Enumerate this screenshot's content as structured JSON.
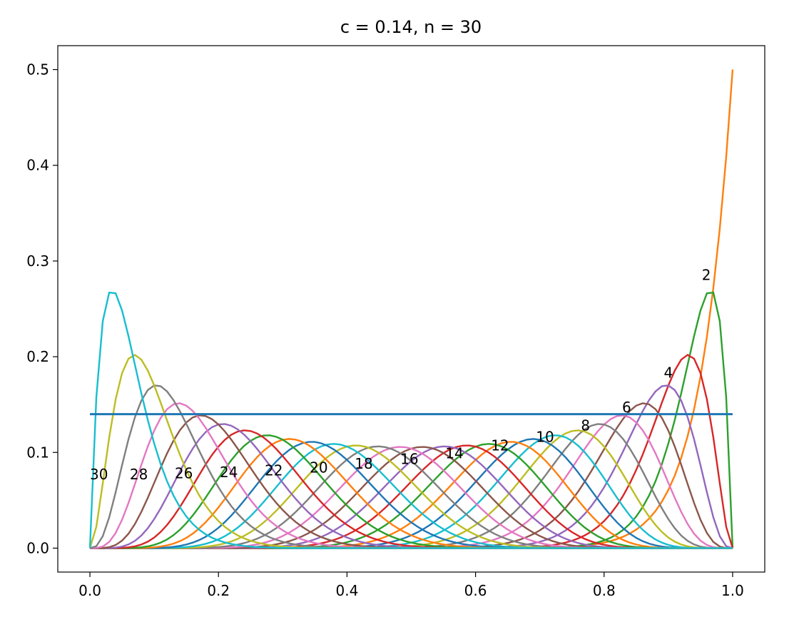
{
  "chart_data": {
    "type": "line",
    "title": "c = 0.14, n = 30",
    "xlabel": "",
    "ylabel": "",
    "xlim": [
      -0.05,
      1.05
    ],
    "ylim": [
      -0.025,
      0.525
    ],
    "xticks": [
      0.0,
      0.2,
      0.4,
      0.6,
      0.8,
      1.0
    ],
    "xtick_labels": [
      "0.0",
      "0.2",
      "0.4",
      "0.6",
      "0.8",
      "1.0"
    ],
    "yticks": [
      0.0,
      0.1,
      0.2,
      0.3,
      0.4,
      0.5
    ],
    "ytick_labels": [
      "0.0",
      "0.1",
      "0.2",
      "0.3",
      "0.4",
      "0.5"
    ],
    "grid": false,
    "legend": "none",
    "parameters": {
      "c": 0.14,
      "n": 30
    },
    "series_colors": [
      "#1f77b4",
      "#ff7f0e",
      "#2ca02c",
      "#d62728",
      "#9467bd",
      "#8c564b",
      "#e377c2",
      "#7f7f7f",
      "#bcbd22",
      "#17becf"
    ],
    "horizontal_line": {
      "y": 0.14,
      "x_range": [
        0.0,
        1.0
      ],
      "color": "#1f77b4"
    },
    "annotations": [
      {
        "text": "2",
        "x": 0.952,
        "y": 0.28
      },
      {
        "text": "4",
        "x": 0.893,
        "y": 0.178
      },
      {
        "text": "6",
        "x": 0.828,
        "y": 0.142
      },
      {
        "text": "8",
        "x": 0.764,
        "y": 0.123
      },
      {
        "text": "10",
        "x": 0.694,
        "y": 0.111
      },
      {
        "text": "12",
        "x": 0.624,
        "y": 0.102
      },
      {
        "text": "14",
        "x": 0.553,
        "y": 0.094
      },
      {
        "text": "16",
        "x": 0.483,
        "y": 0.088
      },
      {
        "text": "18",
        "x": 0.412,
        "y": 0.083
      },
      {
        "text": "20",
        "x": 0.342,
        "y": 0.079
      },
      {
        "text": "22",
        "x": 0.272,
        "y": 0.076
      },
      {
        "text": "24",
        "x": 0.202,
        "y": 0.074
      },
      {
        "text": "26",
        "x": 0.132,
        "y": 0.073
      },
      {
        "text": "28",
        "x": 0.062,
        "y": 0.072
      },
      {
        "text": "30",
        "x": 0.0,
        "y": 0.072
      }
    ]
  }
}
